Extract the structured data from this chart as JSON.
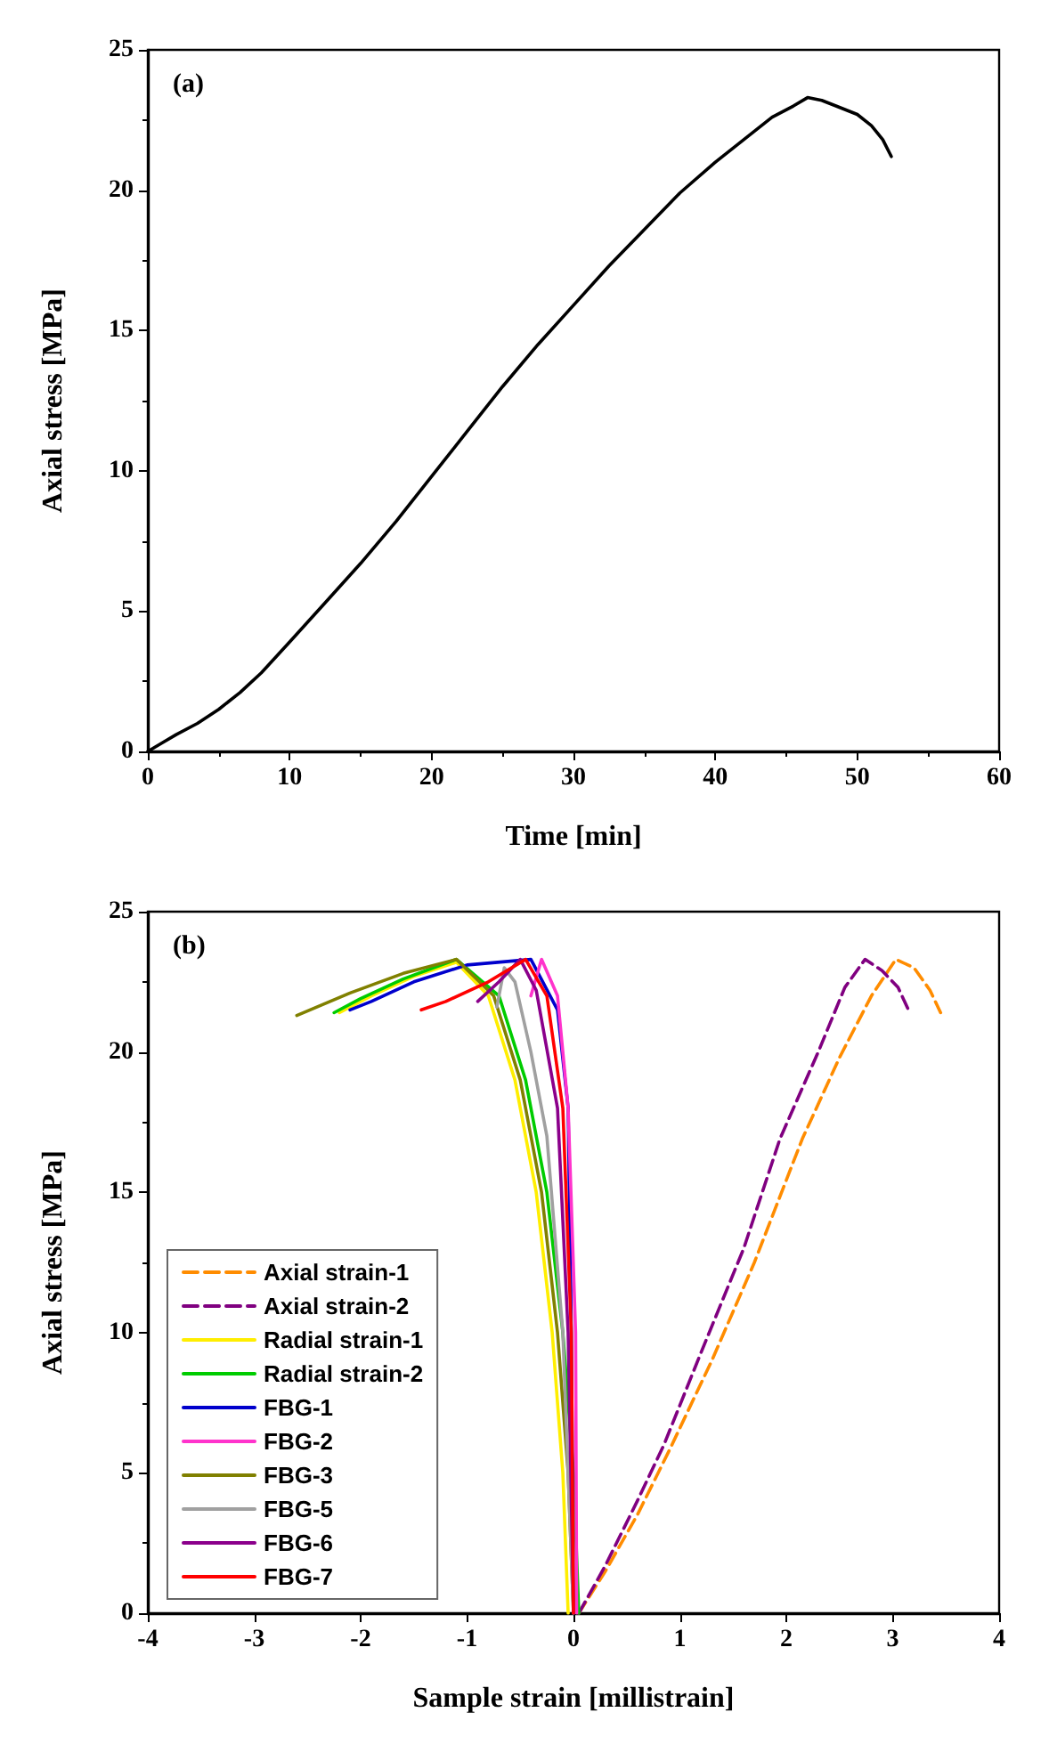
{
  "chart_data": [
    {
      "type": "line",
      "annotations": [
        "(a)"
      ],
      "xlabel": "Time [min]",
      "ylabel": "Axial stress [MPa]",
      "xlim": [
        0,
        60
      ],
      "xticks": [
        0,
        10,
        20,
        30,
        40,
        50,
        60
      ],
      "ylim": [
        0,
        25
      ],
      "yticks": [
        0,
        5,
        10,
        15,
        20,
        25
      ],
      "grid": false,
      "legend": false,
      "series": [
        {
          "color": "#000000",
          "x": [
            0,
            1,
            2,
            3.5,
            5,
            6.5,
            8,
            10,
            12.5,
            15,
            17.5,
            20,
            22.5,
            25,
            27.5,
            30,
            32.5,
            35,
            37.5,
            40,
            42,
            44,
            45.5,
            46.5,
            47.5,
            48.5,
            50,
            51,
            51.8,
            52.4
          ],
          "values": [
            0,
            0.3,
            0.6,
            1.0,
            1.5,
            2.1,
            2.8,
            3.9,
            5.3,
            6.7,
            8.2,
            9.8,
            11.4,
            13.0,
            14.5,
            15.9,
            17.3,
            18.6,
            19.9,
            21.0,
            21.8,
            22.6,
            23.0,
            23.3,
            23.2,
            23.0,
            22.7,
            22.3,
            21.8,
            21.2
          ]
        }
      ]
    },
    {
      "type": "line",
      "annotations": [
        "(b)"
      ],
      "xlabel": "Sample strain [millistrain]",
      "ylabel": "Axial stress [MPa]",
      "xlim": [
        -4,
        4
      ],
      "xticks": [
        -4,
        -3,
        -2,
        -1,
        0,
        1,
        2,
        3,
        4
      ],
      "ylim": [
        0,
        25
      ],
      "yticks": [
        0,
        5,
        10,
        15,
        20,
        25
      ],
      "grid": false,
      "legend": "bottom left",
      "series": [
        {
          "name": "Axial strain-1",
          "color": "#ff8c00",
          "line_style": "dashed",
          "x": [
            0.05,
            0.3,
            0.6,
            0.9,
            1.3,
            1.7,
            2.15,
            2.5,
            2.8,
            3.03,
            3.2,
            3.35,
            3.45
          ],
          "values": [
            0,
            1.5,
            3.5,
            5.8,
            9,
            12.5,
            16.9,
            19.8,
            22,
            23.3,
            23,
            22.2,
            21.4
          ]
        },
        {
          "name": "Axial strain-2",
          "color": "#800080",
          "line_style": "dashed",
          "x": [
            0.05,
            0.3,
            0.6,
            0.85,
            1.2,
            1.6,
            1.94,
            2.3,
            2.55,
            2.74,
            2.9,
            3.05,
            3.16
          ],
          "values": [
            0,
            1.7,
            4,
            6,
            9.3,
            13,
            16.9,
            20,
            22.3,
            23.3,
            22.9,
            22.3,
            21.4
          ]
        },
        {
          "name": "Radial strain-1",
          "color": "#ffee00",
          "line_style": "solid",
          "x": [
            -0.05,
            -0.1,
            -0.2,
            -0.35,
            -0.55,
            -0.8,
            -1.1,
            -1.5,
            -1.9,
            -2.2
          ],
          "values": [
            0,
            5,
            10,
            15,
            19,
            22,
            23.2,
            22.7,
            22.0,
            21.4
          ]
        },
        {
          "name": "Radial strain-2",
          "color": "#00cc00",
          "line_style": "solid",
          "x": [
            0.05,
            0,
            -0.1,
            -0.25,
            -0.45,
            -0.7,
            -1.1,
            -1.6,
            -2.0,
            -2.25
          ],
          "values": [
            0,
            5,
            10,
            15,
            19,
            22,
            23.3,
            22.6,
            21.9,
            21.4
          ]
        },
        {
          "name": "FBG-1",
          "color": "#0000cc",
          "line_style": "solid",
          "x": [
            0,
            -0.02,
            -0.05,
            -0.15,
            -0.4,
            -1.0,
            -1.5,
            -1.9,
            -2.1
          ],
          "values": [
            0,
            10,
            18,
            21.5,
            23.3,
            23.1,
            22.5,
            21.8,
            21.5
          ]
        },
        {
          "name": "FBG-2",
          "color": "#ff33cc",
          "line_style": "solid",
          "x": [
            0.03,
            0.02,
            -0.05,
            -0.15,
            -0.3,
            -0.4
          ],
          "values": [
            0,
            10,
            18,
            22,
            23.3,
            22
          ]
        },
        {
          "name": "FBG-3",
          "color": "#808000",
          "line_style": "solid",
          "x": [
            0,
            -0.05,
            -0.15,
            -0.3,
            -0.5,
            -0.75,
            -1.1,
            -1.6,
            -2.1,
            -2.6
          ],
          "values": [
            0,
            5,
            10,
            15,
            19,
            22,
            23.3,
            22.8,
            22.1,
            21.3
          ]
        },
        {
          "name": "FBG-5",
          "color": "#a0a0a0",
          "line_style": "solid",
          "x": [
            0,
            -0.1,
            -0.25,
            -0.4,
            -0.55,
            -0.65,
            -0.72
          ],
          "values": [
            0,
            10,
            17,
            20,
            22.5,
            23.0,
            21.6
          ]
        },
        {
          "name": "FBG-6",
          "color": "#8b008b",
          "line_style": "solid",
          "x": [
            0,
            -0.05,
            -0.15,
            -0.35,
            -0.5,
            -0.7,
            -0.9
          ],
          "values": [
            0,
            10,
            18,
            22.2,
            23.3,
            22.5,
            21.8
          ]
        },
        {
          "name": "FBG-7",
          "color": "#ff0000",
          "line_style": "solid",
          "x": [
            0,
            -0.02,
            -0.1,
            -0.25,
            -0.45,
            -0.8,
            -1.2,
            -1.43
          ],
          "values": [
            0,
            10,
            18,
            22,
            23.3,
            22.5,
            21.8,
            21.5
          ]
        }
      ]
    }
  ]
}
